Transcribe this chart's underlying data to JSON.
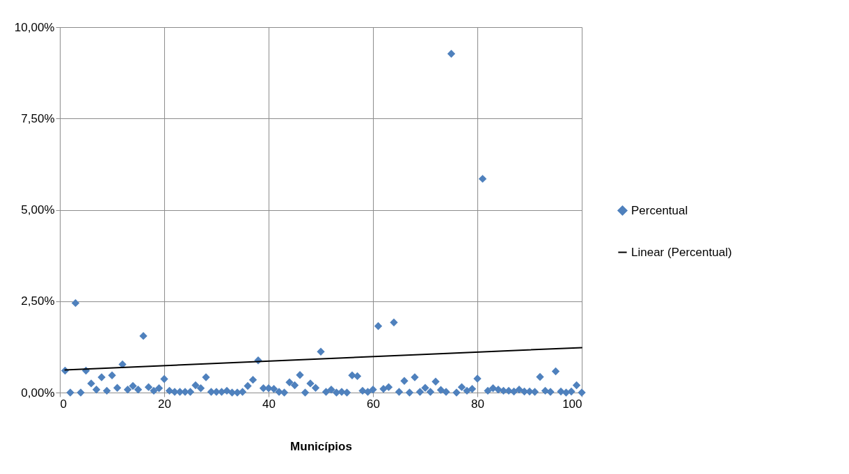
{
  "chart_data": {
    "type": "scatter",
    "xlabel": "Municípios",
    "xlim": [
      0,
      100
    ],
    "xticks": [
      0,
      20,
      40,
      60,
      80,
      100
    ],
    "ylim": [
      0,
      10
    ],
    "yticks": [
      {
        "value": 0,
        "label": "0,00%"
      },
      {
        "value": 2.5,
        "label": "2,50%"
      },
      {
        "value": 5,
        "label": "5,00%"
      },
      {
        "value": 7.5,
        "label": "7,50%"
      },
      {
        "value": 10,
        "label": "10,00%"
      }
    ],
    "grid": true,
    "legend": "right",
    "series": [
      {
        "name": "Percentual",
        "color": "#4f81bd",
        "marker": "diamond",
        "x": [
          1,
          2,
          3,
          4,
          5,
          6,
          7,
          8,
          9,
          10,
          11,
          12,
          13,
          14,
          15,
          16,
          17,
          18,
          19,
          20,
          21,
          22,
          23,
          24,
          25,
          26,
          27,
          28,
          29,
          30,
          31,
          32,
          33,
          34,
          35,
          36,
          37,
          38,
          39,
          40,
          41,
          42,
          43,
          44,
          45,
          46,
          47,
          48,
          49,
          50,
          51,
          52,
          53,
          54,
          55,
          56,
          57,
          58,
          59,
          60,
          61,
          62,
          63,
          64,
          65,
          66,
          67,
          68,
          69,
          70,
          71,
          72,
          73,
          74,
          75,
          76,
          77,
          78,
          79,
          80,
          81,
          82,
          83,
          84,
          85,
          86,
          87,
          88,
          89,
          90,
          91,
          92,
          93,
          94,
          95,
          96,
          97,
          98,
          99,
          100
        ],
        "values": [
          0.6,
          0.0,
          2.45,
          0.0,
          0.6,
          0.25,
          0.08,
          0.42,
          0.05,
          0.47,
          0.13,
          0.77,
          0.08,
          0.18,
          0.08,
          1.55,
          0.15,
          0.05,
          0.12,
          0.37,
          0.05,
          0.02,
          0.02,
          0.02,
          0.02,
          0.2,
          0.12,
          0.42,
          0.02,
          0.02,
          0.02,
          0.05,
          0.0,
          0.0,
          0.02,
          0.18,
          0.35,
          0.88,
          0.12,
          0.12,
          0.1,
          0.02,
          0.0,
          0.28,
          0.2,
          0.48,
          0.0,
          0.25,
          0.13,
          1.12,
          0.02,
          0.08,
          0.0,
          0.02,
          0.0,
          0.47,
          0.45,
          0.05,
          0.02,
          0.08,
          1.82,
          0.1,
          0.15,
          1.92,
          0.02,
          0.32,
          0.0,
          0.42,
          0.02,
          0.13,
          0.02,
          0.3,
          0.07,
          0.02,
          9.27,
          0.0,
          0.15,
          0.05,
          0.1,
          0.38,
          5.85,
          0.05,
          0.12,
          0.08,
          0.05,
          0.05,
          0.03,
          0.08,
          0.03,
          0.03,
          0.02,
          0.43,
          0.05,
          0.02,
          0.58,
          0.03,
          0.0,
          0.03,
          0.2,
          0.0
        ]
      },
      {
        "name": "Linear (Percentual)",
        "color": "#000000",
        "type": "line",
        "marker": "none",
        "line_style": "solid",
        "x": [
          1,
          100
        ],
        "values": [
          0.62,
          1.23
        ]
      }
    ]
  }
}
